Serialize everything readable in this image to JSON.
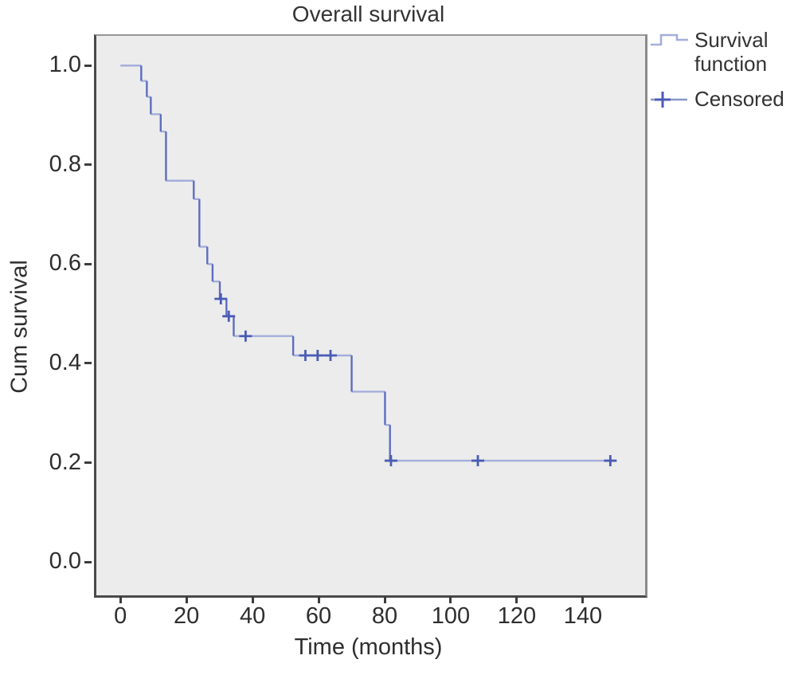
{
  "chart_data": {
    "type": "line",
    "subtype": "kaplan_meier_step_function",
    "title": "Overall survival",
    "xlabel": "Time (months)",
    "ylabel": "Cum survival",
    "xlim": [
      -8,
      158.1
    ],
    "ylim": [
      -0.064,
      1.063
    ],
    "grid": false,
    "legend_position": "top-right-outside",
    "x_ticks": [
      {
        "value": 0,
        "label": "0"
      },
      {
        "value": 20,
        "label": "20"
      },
      {
        "value": 40,
        "label": "40"
      },
      {
        "value": 60,
        "label": "60"
      },
      {
        "value": 80,
        "label": "80"
      },
      {
        "value": 100,
        "label": "100"
      },
      {
        "value": 120,
        "label": "120"
      },
      {
        "value": 140,
        "label": "140"
      }
    ],
    "y_ticks": [
      {
        "value": 0.0,
        "label": "0.0"
      },
      {
        "value": 0.2,
        "label": "0.2"
      },
      {
        "value": 0.4,
        "label": "0.4"
      },
      {
        "value": 0.6,
        "label": "0.6"
      },
      {
        "value": 0.8,
        "label": "0.8"
      },
      {
        "value": 1.0,
        "label": "1.0"
      }
    ],
    "series": [
      {
        "name": "Survival function",
        "type": "step",
        "steps": [
          [
            0,
            1.0
          ],
          [
            6.3,
            0.969
          ],
          [
            8.0,
            0.937
          ],
          [
            9.2,
            0.902
          ],
          [
            12.2,
            0.867
          ],
          [
            13.8,
            0.768
          ],
          [
            22.2,
            0.731
          ],
          [
            23.9,
            0.635
          ],
          [
            26.3,
            0.6
          ],
          [
            27.9,
            0.565
          ],
          [
            30.1,
            0.53
          ],
          [
            32.1,
            0.495
          ],
          [
            34.3,
            0.455
          ],
          [
            52.3,
            0.416
          ],
          [
            70.0,
            0.343
          ],
          [
            80.1,
            0.276
          ],
          [
            81.6,
            0.204
          ]
        ],
        "end_time": 149
      },
      {
        "name": "Censored",
        "type": "marker",
        "points": [
          [
            30.4,
            0.53
          ],
          [
            32.8,
            0.495
          ],
          [
            37.9,
            0.455
          ],
          [
            56.0,
            0.416
          ],
          [
            59.7,
            0.416
          ],
          [
            63.6,
            0.416
          ],
          [
            81.9,
            0.204
          ],
          [
            108.2,
            0.204
          ],
          [
            148.3,
            0.204
          ]
        ]
      }
    ]
  },
  "legend": {
    "items": [
      {
        "label": "Survival function",
        "symbol": "step-line-icon"
      },
      {
        "label": "Censored",
        "symbol": "plus-marker-icon"
      }
    ]
  },
  "colors": {
    "line_horizontal": "#a4aedb",
    "line_vertical": "#5e6cc1",
    "censor_marker": "#4a5bb5",
    "censor_tail_line": "#8a97ca",
    "plot_background": "#ececec",
    "frame": "#979797",
    "axis_line": "#4a4a4a",
    "tick": "#3d3d3d",
    "text": "#2e2e2e"
  }
}
